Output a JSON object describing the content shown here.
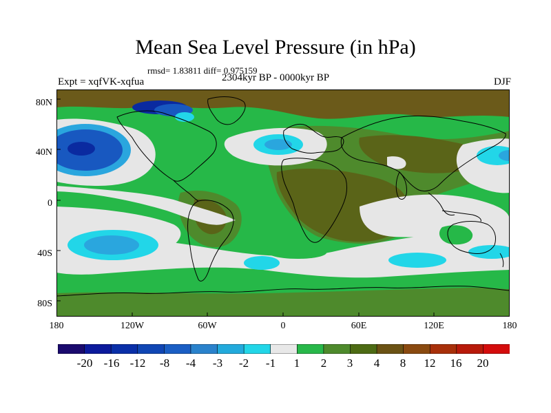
{
  "header": {
    "title": "Mean Sea Level Pressure (in hPa)",
    "stats": "rmsd= 1.83811 diff= 0.975159",
    "experiment": "Expt = xqfVK-xqfua",
    "period": "2304kyr BP - 0000kyr BP",
    "season": "DJF"
  },
  "axes": {
    "lat_labels": [
      "80N",
      "40N",
      "0",
      "40S",
      "80S"
    ],
    "lon_labels": [
      "180",
      "120W",
      "60W",
      "0",
      "60E",
      "120E",
      "180"
    ]
  },
  "colorbar": {
    "labels": [
      "-20",
      "-16",
      "-12",
      "-8",
      "-4",
      "-3",
      "-2",
      "-1",
      "1",
      "2",
      "3",
      "4",
      "8",
      "12",
      "16",
      "20"
    ],
    "colors": [
      "#1a0a6e",
      "#0c1a9c",
      "#0a2fa8",
      "#1046b4",
      "#1a5ec4",
      "#2a82cc",
      "#22aadc",
      "#22d6e8",
      "#e8e8e8",
      "#28b84a",
      "#4e8a2c",
      "#4d6b14",
      "#6b5214",
      "#8a4a10",
      "#a8300a",
      "#b81a0a",
      "#d40c0c"
    ]
  },
  "map_colors": {
    "neutral": "#e6e6e6",
    "green": "#26b848",
    "olive": "#4e8a2c",
    "darkolive": "#5a6418",
    "brown": "#6b5a1a",
    "cyan": "#22d6e8",
    "lightblue": "#2aa6de",
    "blue": "#1858c0",
    "navy": "#0a2aa0",
    "coast": "#000000"
  }
}
